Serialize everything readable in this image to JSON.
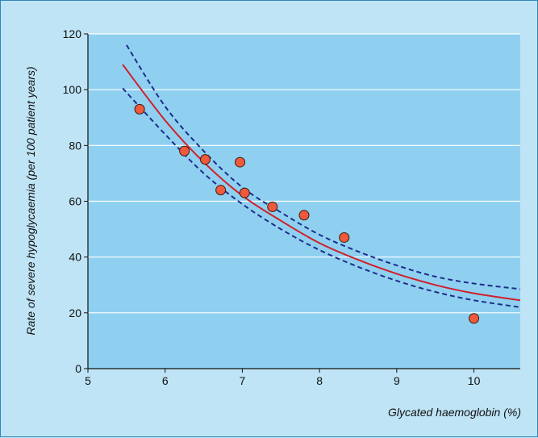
{
  "colors": {
    "page_background": "#bfe4f6",
    "plot_background": "#8fd0f1",
    "gridline": "#ffffff",
    "fit_line": "#d0202a",
    "confidence_band": "#1f2d8a",
    "point_fill": "#ef5a3c",
    "point_stroke": "#3a1a10"
  },
  "chart_data": {
    "type": "scatter",
    "title": "",
    "xlabel": "Glycated haemoglobin (%)",
    "ylabel": "Rate of severe hypoglycaemia (per 100 patient years)",
    "xlim": [
      5,
      10.6
    ],
    "ylim": [
      0,
      120
    ],
    "xticks": [
      5,
      6,
      7,
      8,
      9,
      10
    ],
    "yticks": [
      0,
      20,
      40,
      60,
      80,
      100,
      120
    ],
    "grid": "horizontal",
    "points": [
      {
        "x": 5.67,
        "y": 93
      },
      {
        "x": 6.25,
        "y": 78
      },
      {
        "x": 6.52,
        "y": 75
      },
      {
        "x": 6.72,
        "y": 64
      },
      {
        "x": 6.97,
        "y": 74
      },
      {
        "x": 7.03,
        "y": 63
      },
      {
        "x": 7.39,
        "y": 58
      },
      {
        "x": 7.8,
        "y": 55
      },
      {
        "x": 8.32,
        "y": 47
      },
      {
        "x": 10.0,
        "y": 18
      }
    ],
    "fit_curve": [
      {
        "x": 5.45,
        "y": 109
      },
      {
        "x": 6.0,
        "y": 89
      },
      {
        "x": 6.5,
        "y": 74
      },
      {
        "x": 7.0,
        "y": 62
      },
      {
        "x": 7.5,
        "y": 53
      },
      {
        "x": 8.0,
        "y": 45
      },
      {
        "x": 8.5,
        "y": 39
      },
      {
        "x": 9.0,
        "y": 34
      },
      {
        "x": 9.5,
        "y": 30
      },
      {
        "x": 10.0,
        "y": 27
      },
      {
        "x": 10.6,
        "y": 24.5
      }
    ],
    "upper_band": [
      {
        "x": 5.5,
        "y": 116
      },
      {
        "x": 6.0,
        "y": 94
      },
      {
        "x": 6.5,
        "y": 78
      },
      {
        "x": 7.0,
        "y": 65
      },
      {
        "x": 7.5,
        "y": 56
      },
      {
        "x": 8.0,
        "y": 48
      },
      {
        "x": 8.5,
        "y": 42
      },
      {
        "x": 9.0,
        "y": 37
      },
      {
        "x": 9.5,
        "y": 33
      },
      {
        "x": 10.0,
        "y": 30.5
      },
      {
        "x": 10.6,
        "y": 28.5
      }
    ],
    "lower_band": [
      {
        "x": 5.45,
        "y": 100.5
      },
      {
        "x": 6.0,
        "y": 84
      },
      {
        "x": 6.5,
        "y": 70
      },
      {
        "x": 7.0,
        "y": 59
      },
      {
        "x": 7.5,
        "y": 50
      },
      {
        "x": 8.0,
        "y": 42.5
      },
      {
        "x": 8.5,
        "y": 36.5
      },
      {
        "x": 9.0,
        "y": 31.5
      },
      {
        "x": 9.5,
        "y": 27.5
      },
      {
        "x": 10.0,
        "y": 24.5
      },
      {
        "x": 10.6,
        "y": 22
      }
    ]
  }
}
